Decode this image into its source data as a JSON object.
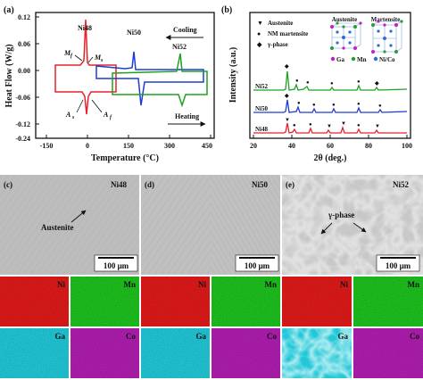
{
  "panel_a": {
    "label": "(a)",
    "xlabel": "Temperature (°C)",
    "ylabel": "Heat Flow (W/g)",
    "xticks": [
      "-150",
      "0",
      "150",
      "300",
      "450"
    ],
    "yticks": [
      "0.12",
      "0.06",
      "0.00",
      "-0.06",
      "-0.12"
    ],
    "bottom_y_tick": "-0.24",
    "series": [
      {
        "name": "Ni48",
        "color": "#e8202a"
      },
      {
        "name": "Ni50",
        "color": "#1f3bd6"
      },
      {
        "name": "Ni52",
        "color": "#1fa21f"
      }
    ],
    "annotations": {
      "mf": "M",
      "mf_sub": "f",
      "ms": "M",
      "ms_sub": "s",
      "as": "A",
      "as_sub": "s",
      "af": "A",
      "af_sub": "f"
    },
    "cooling_label": "Cooling",
    "heating_label": "Heating"
  },
  "panel_b": {
    "label": "(b)",
    "xlabel": "2θ (deg.)",
    "ylabel": "Intensity (a.u.)",
    "xticks": [
      "20",
      "40",
      "60",
      "80",
      "100"
    ],
    "legend": [
      {
        "symbol": "▼",
        "label": "Austenite"
      },
      {
        "symbol": "●",
        "label": "NM martensite"
      },
      {
        "symbol": "◆",
        "label": "γ-phase"
      }
    ],
    "series": [
      {
        "name": "Ni52",
        "color": "#1fa21f"
      },
      {
        "name": "Ni50",
        "color": "#1f3bd6"
      },
      {
        "name": "Ni48",
        "color": "#e8202a"
      }
    ],
    "crystal_labels": {
      "austenite": "Austenite",
      "martensite": "Martensite"
    },
    "atom_legend": [
      {
        "label": "Ga",
        "color": "#c020c0"
      },
      {
        "label": "Mn",
        "color": "#2a9a3a"
      },
      {
        "label": "Ni/Co",
        "color": "#2a6fd0"
      }
    ]
  },
  "micrographs": [
    {
      "label": "(c)",
      "sample": "Ni48",
      "annotation": "Austenite",
      "scale": "100 μm"
    },
    {
      "label": "(d)",
      "sample": "Ni50",
      "annotation": "",
      "scale": "100 μm"
    },
    {
      "label": "(e)",
      "sample": "Ni52",
      "annotation": "γ-phase",
      "scale": "100 μm"
    }
  ],
  "eds_maps": [
    {
      "ni": "Ni",
      "mn": "Mn",
      "ga": "Ga",
      "co": "Co"
    },
    {
      "ni": "Ni",
      "mn": "Mn",
      "ga": "Ga",
      "co": "Co"
    },
    {
      "ni": "Ni",
      "mn": "Mn",
      "ga": "Ga",
      "co": "Co"
    }
  ],
  "map_colors": {
    "ni": "#e01a1a",
    "mn": "#1ec21e",
    "ga": "#22c8d8",
    "co": "#b01eb0"
  }
}
